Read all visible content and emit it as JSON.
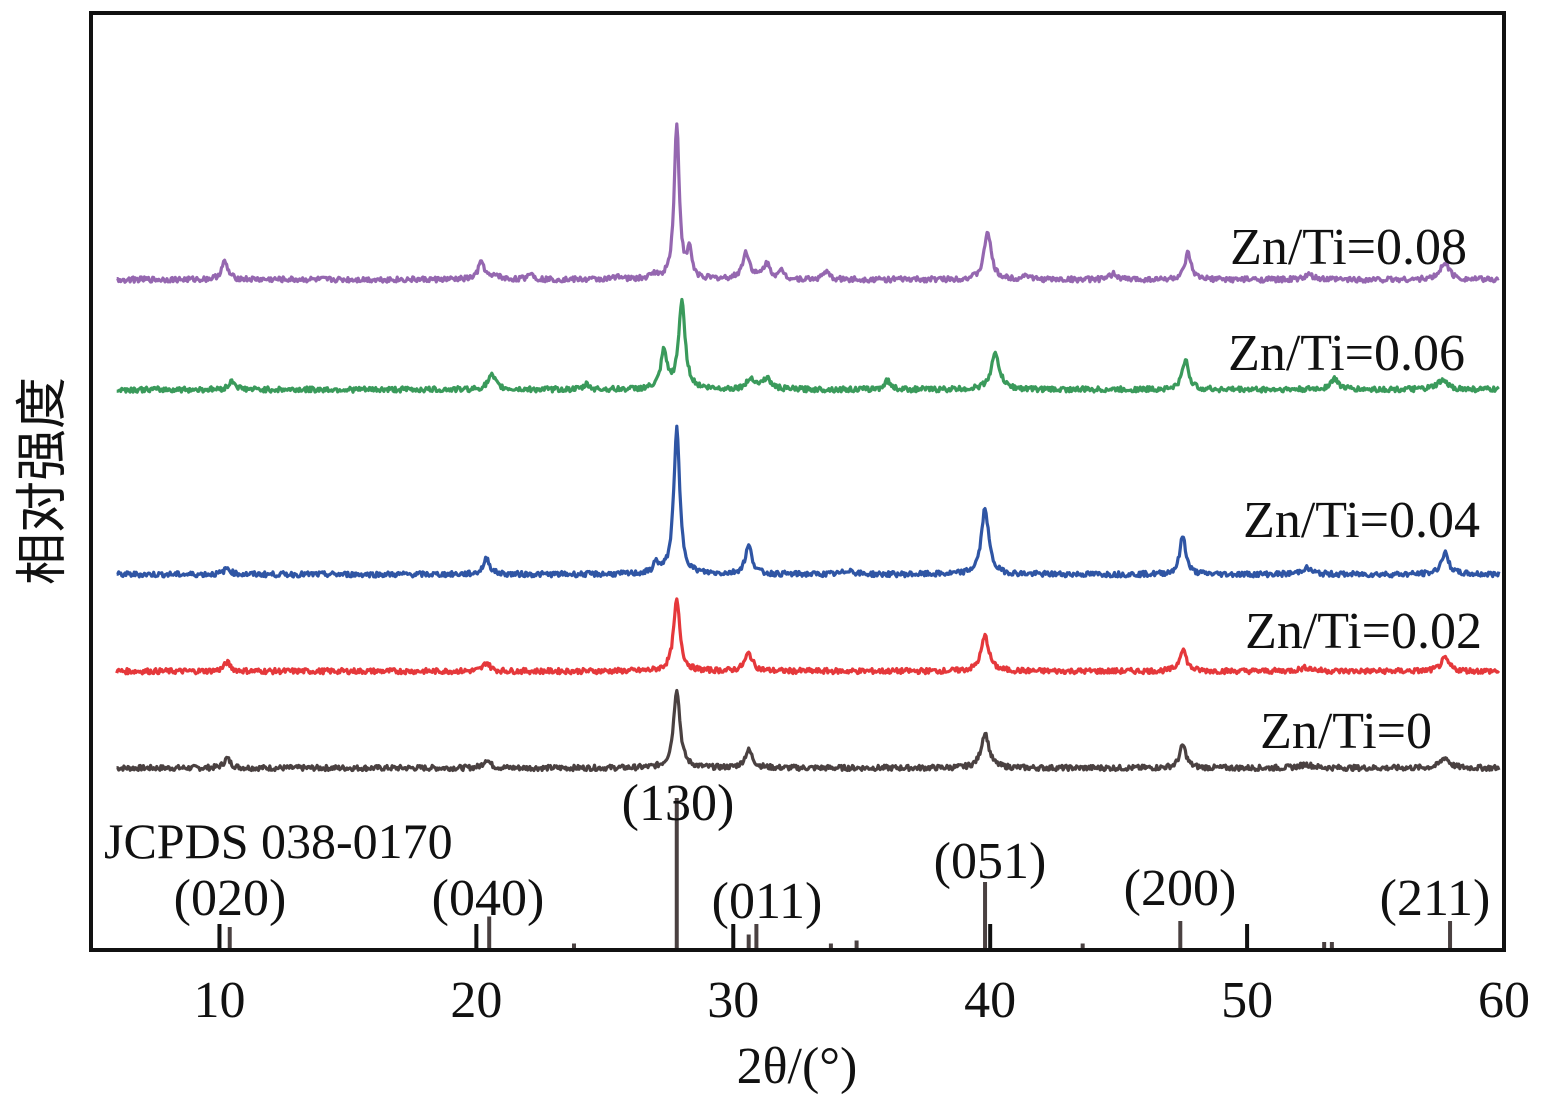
{
  "chart_data": {
    "type": "line",
    "xlabel": "2θ/(°)",
    "ylabel": "相对强度",
    "xlim": [
      5,
      60
    ],
    "xticks": [
      10,
      20,
      30,
      40,
      50,
      60
    ],
    "xtick_labels": [
      "10",
      "20",
      "30",
      "40",
      "50",
      "60"
    ],
    "y_ticks_shown": false,
    "grid": false,
    "reference": {
      "label": "JCPDS 038-0170",
      "sticks": [
        {
          "x": 10.4,
          "h": 0.14
        },
        {
          "x": 20.5,
          "h": 0.21
        },
        {
          "x": 23.8,
          "h": 0.03
        },
        {
          "x": 27.8,
          "h": 1.0
        },
        {
          "x": 30.6,
          "h": 0.09
        },
        {
          "x": 30.9,
          "h": 0.16
        },
        {
          "x": 33.8,
          "h": 0.03
        },
        {
          "x": 34.8,
          "h": 0.05
        },
        {
          "x": 39.8,
          "h": 0.44
        },
        {
          "x": 43.6,
          "h": 0.03
        },
        {
          "x": 47.4,
          "h": 0.18
        },
        {
          "x": 53.0,
          "h": 0.04
        },
        {
          "x": 53.3,
          "h": 0.04
        },
        {
          "x": 57.9,
          "h": 0.18
        }
      ],
      "hkl_labels": [
        {
          "text": "(020)",
          "x": 10.4
        },
        {
          "text": "(040)",
          "x": 20.5
        },
        {
          "text": "(130)",
          "x": 27.8
        },
        {
          "text": "(011)",
          "x": 30.8
        },
        {
          "text": "(051)",
          "x": 39.8
        },
        {
          "text": "(200)",
          "x": 47.4
        },
        {
          "text": "(211)",
          "x": 57.9
        }
      ]
    },
    "series": [
      {
        "name": "Zn/Ti=0",
        "color": "#4a4141",
        "offset": 0.0,
        "peaks": [
          {
            "x": 10.3,
            "h": 0.11,
            "w": 0.15
          },
          {
            "x": 20.4,
            "h": 0.1,
            "w": 0.15
          },
          {
            "x": 27.8,
            "h": 0.9,
            "w": 0.15
          },
          {
            "x": 30.6,
            "h": 0.2,
            "w": 0.18
          },
          {
            "x": 39.8,
            "h": 0.4,
            "w": 0.18
          },
          {
            "x": 47.5,
            "h": 0.26,
            "w": 0.15
          },
          {
            "x": 52.3,
            "h": 0.04,
            "w": 0.3
          },
          {
            "x": 57.7,
            "h": 0.12,
            "w": 0.2
          }
        ]
      },
      {
        "name": "Zn/Ti=0.02",
        "color": "#e5383b",
        "offset": 1.1,
        "peaks": [
          {
            "x": 10.3,
            "h": 0.1,
            "w": 0.15
          },
          {
            "x": 20.4,
            "h": 0.1,
            "w": 0.15
          },
          {
            "x": 27.8,
            "h": 0.8,
            "w": 0.15
          },
          {
            "x": 30.6,
            "h": 0.2,
            "w": 0.18
          },
          {
            "x": 39.8,
            "h": 0.4,
            "w": 0.18
          },
          {
            "x": 47.5,
            "h": 0.26,
            "w": 0.15
          },
          {
            "x": 52.3,
            "h": 0.04,
            "w": 0.3
          },
          {
            "x": 57.7,
            "h": 0.14,
            "w": 0.2
          }
        ]
      },
      {
        "name": "Zn/Ti=0.04",
        "color": "#2f55a4",
        "offset": 2.2,
        "peaks": [
          {
            "x": 10.3,
            "h": 0.07,
            "w": 0.15
          },
          {
            "x": 20.4,
            "h": 0.18,
            "w": 0.15
          },
          {
            "x": 27.0,
            "h": 0.12,
            "w": 0.12
          },
          {
            "x": 27.8,
            "h": 1.65,
            "w": 0.14
          },
          {
            "x": 30.6,
            "h": 0.32,
            "w": 0.16
          },
          {
            "x": 34.5,
            "h": 0.05,
            "w": 0.2
          },
          {
            "x": 39.8,
            "h": 0.75,
            "w": 0.17
          },
          {
            "x": 47.5,
            "h": 0.44,
            "w": 0.14
          },
          {
            "x": 52.3,
            "h": 0.07,
            "w": 0.25
          },
          {
            "x": 57.7,
            "h": 0.24,
            "w": 0.18
          }
        ]
      },
      {
        "name": "Zn/Ti=0.06",
        "color": "#3a9a5b",
        "offset": 4.3,
        "peaks": [
          {
            "x": 10.5,
            "h": 0.1,
            "w": 0.15
          },
          {
            "x": 20.6,
            "h": 0.16,
            "w": 0.18
          },
          {
            "x": 24.3,
            "h": 0.06,
            "w": 0.12
          },
          {
            "x": 27.3,
            "h": 0.42,
            "w": 0.14
          },
          {
            "x": 28.0,
            "h": 1.0,
            "w": 0.15
          },
          {
            "x": 30.7,
            "h": 0.12,
            "w": 0.2
          },
          {
            "x": 31.3,
            "h": 0.12,
            "w": 0.2
          },
          {
            "x": 36.0,
            "h": 0.1,
            "w": 0.15
          },
          {
            "x": 40.2,
            "h": 0.4,
            "w": 0.2
          },
          {
            "x": 47.6,
            "h": 0.34,
            "w": 0.15
          },
          {
            "x": 53.4,
            "h": 0.12,
            "w": 0.2
          },
          {
            "x": 57.6,
            "h": 0.1,
            "w": 0.25
          }
        ]
      },
      {
        "name": "Zn/Ti=0.08",
        "color": "#9567b0",
        "offset": 5.55,
        "peaks": [
          {
            "x": 10.2,
            "h": 0.2,
            "w": 0.15
          },
          {
            "x": 20.2,
            "h": 0.2,
            "w": 0.15
          },
          {
            "x": 20.8,
            "h": 0.05,
            "w": 0.12
          },
          {
            "x": 22.1,
            "h": 0.08,
            "w": 0.12
          },
          {
            "x": 25.5,
            "h": 0.05,
            "w": 0.12
          },
          {
            "x": 26.9,
            "h": 0.06,
            "w": 0.12
          },
          {
            "x": 27.8,
            "h": 1.75,
            "w": 0.12
          },
          {
            "x": 28.3,
            "h": 0.32,
            "w": 0.1
          },
          {
            "x": 30.5,
            "h": 0.3,
            "w": 0.17
          },
          {
            "x": 31.3,
            "h": 0.17,
            "w": 0.17
          },
          {
            "x": 31.9,
            "h": 0.09,
            "w": 0.12
          },
          {
            "x": 33.6,
            "h": 0.1,
            "w": 0.12
          },
          {
            "x": 39.9,
            "h": 0.55,
            "w": 0.16
          },
          {
            "x": 41.4,
            "h": 0.06,
            "w": 0.12
          },
          {
            "x": 44.8,
            "h": 0.07,
            "w": 0.15
          },
          {
            "x": 47.7,
            "h": 0.3,
            "w": 0.14
          },
          {
            "x": 52.4,
            "h": 0.05,
            "w": 0.2
          },
          {
            "x": 57.7,
            "h": 0.2,
            "w": 0.2
          }
        ]
      }
    ]
  }
}
